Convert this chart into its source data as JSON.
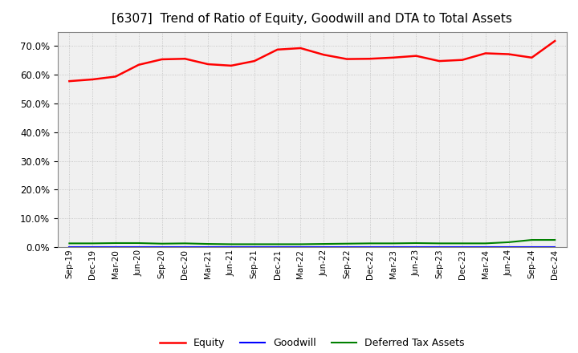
{
  "title": "[6307]  Trend of Ratio of Equity, Goodwill and DTA to Total Assets",
  "x_labels": [
    "Sep-19",
    "Dec-19",
    "Mar-20",
    "Jun-20",
    "Sep-20",
    "Dec-20",
    "Mar-21",
    "Jun-21",
    "Sep-21",
    "Dec-21",
    "Mar-22",
    "Jun-22",
    "Sep-22",
    "Dec-22",
    "Mar-23",
    "Jun-23",
    "Sep-23",
    "Dec-23",
    "Mar-24",
    "Jun-24",
    "Sep-24",
    "Dec-24"
  ],
  "equity": [
    0.578,
    0.584,
    0.594,
    0.635,
    0.654,
    0.656,
    0.637,
    0.632,
    0.648,
    0.688,
    0.693,
    0.67,
    0.655,
    0.656,
    0.66,
    0.666,
    0.648,
    0.652,
    0.675,
    0.672,
    0.66,
    0.718
  ],
  "goodwill": [
    0.0,
    0.0,
    0.0,
    0.0,
    0.0,
    0.0,
    0.0,
    0.0,
    0.0,
    0.0,
    0.0,
    0.0,
    0.0,
    0.0,
    0.0,
    0.0,
    0.0,
    0.0,
    0.0,
    0.0,
    0.0,
    0.0
  ],
  "dta": [
    0.013,
    0.013,
    0.014,
    0.014,
    0.012,
    0.013,
    0.011,
    0.01,
    0.01,
    0.01,
    0.01,
    0.011,
    0.012,
    0.013,
    0.013,
    0.014,
    0.013,
    0.013,
    0.013,
    0.017,
    0.025,
    0.025
  ],
  "equity_color": "#ff0000",
  "goodwill_color": "#0000ff",
  "dta_color": "#008000",
  "bg_color": "#f0f0f0",
  "grid_color": "#bbbbbb",
  "ylim": [
    0.0,
    0.75
  ],
  "yticks": [
    0.0,
    0.1,
    0.2,
    0.3,
    0.4,
    0.5,
    0.6,
    0.7
  ],
  "title_fontsize": 11,
  "legend_labels": [
    "Equity",
    "Goodwill",
    "Deferred Tax Assets"
  ]
}
